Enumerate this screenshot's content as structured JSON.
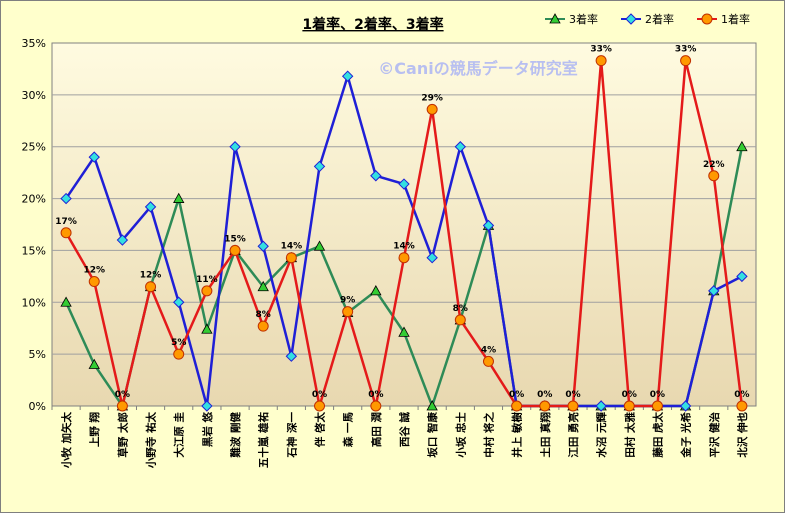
{
  "chart_data": {
    "type": "line",
    "title": "1着率、2着率、3着率",
    "watermark": "©Caniの競馬データ研究室",
    "categories": [
      "小牧 加矢太",
      "上野 翔",
      "草野 太郎",
      "小野寺 祐太",
      "大江原 圭",
      "黒岩 悠",
      "難波 剛健",
      "五十嵐 雄祐",
      "石神 深一",
      "伴 啓太",
      "森 一馬",
      "高田 潤",
      "西谷 誠",
      "坂口 智康",
      "小坂 忠士",
      "中村 将之",
      "井上 敏樹",
      "土田 真翔",
      "江田 勇亮",
      "水沼 元輝",
      "田村 太雅",
      "藤田 虎太",
      "金子 光希",
      "平沢 健治",
      "北沢 伸也"
    ],
    "series": [
      {
        "name": "3着率",
        "color": "#2e8b57",
        "marker": "triangle",
        "values": [
          10,
          4,
          0,
          11.5,
          20,
          7.4,
          15,
          11.5,
          14.3,
          15.4,
          9,
          11.1,
          7.1,
          0,
          8.3,
          17.4,
          0,
          0,
          0,
          0,
          0,
          0,
          0,
          11.1,
          25
        ]
      },
      {
        "name": "2着率",
        "color": "#1f1fd6",
        "marker": "diamond",
        "values": [
          20,
          24,
          16,
          19.2,
          10,
          0,
          25,
          15.4,
          4.8,
          23.1,
          31.8,
          22.2,
          21.4,
          14.3,
          25,
          17.4,
          0,
          0,
          0,
          0,
          0,
          0,
          0,
          11.1,
          12.5
        ]
      },
      {
        "name": "1着率",
        "color": "#e41a1a",
        "marker": "circle",
        "values": [
          16.7,
          12,
          0,
          11.5,
          5,
          11.1,
          15,
          7.7,
          14.3,
          0,
          9.1,
          0,
          14.3,
          28.6,
          8.3,
          4.3,
          0,
          0,
          0,
          33.3,
          0,
          0,
          33.3,
          22.2,
          0
        ]
      }
    ],
    "data_labels_1st": [
      "17%",
      "12%",
      "0%",
      "12%",
      "5%",
      "11%",
      "15%",
      "8%",
      "14%",
      "0%",
      "9%",
      "0%",
      "14%",
      "29%",
      "8%",
      "4%",
      "0%",
      "0%",
      "0%",
      "33%",
      "0%",
      "0%",
      "33%",
      "22%",
      "0%"
    ],
    "y_ticks": [
      "0%",
      "5%",
      "10%",
      "15%",
      "20%",
      "25%",
      "30%",
      "35%"
    ],
    "ylim": [
      0,
      35
    ],
    "legend": [
      "3着率",
      "2着率",
      "1着率"
    ],
    "legend_position": "top-right",
    "grid": true
  }
}
